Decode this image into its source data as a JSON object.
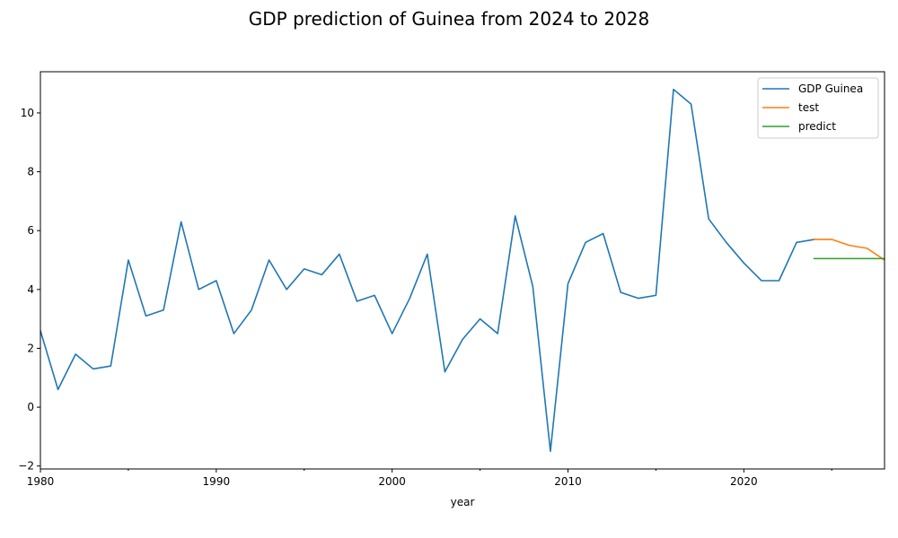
{
  "chart_data": {
    "type": "line",
    "title": "GDP prediction of Guinea from 2024 to 2028",
    "xlabel": "year",
    "ylabel": "",
    "xlim": [
      1980,
      2028
    ],
    "ylim": [
      -2.1,
      11.4
    ],
    "x_ticks": [
      1980,
      1990,
      2000,
      2010,
      2020
    ],
    "x_tick_labels": [
      "1980",
      "1990",
      "2000",
      "2010",
      "2020"
    ],
    "x_minor_ticks": [
      1985,
      1995,
      2005,
      2015,
      2025
    ],
    "y_ticks": [
      -2,
      0,
      2,
      4,
      6,
      8,
      10
    ],
    "y_tick_labels": [
      "−2",
      "0",
      "2",
      "4",
      "6",
      "8",
      "10"
    ],
    "grid": false,
    "legend_position": "top-right",
    "series": [
      {
        "name": "GDP Guinea",
        "color": "#1f77b4",
        "x": [
          1980,
          1981,
          1982,
          1983,
          1984,
          1985,
          1986,
          1987,
          1988,
          1989,
          1990,
          1991,
          1992,
          1993,
          1994,
          1995,
          1996,
          1997,
          1998,
          1999,
          2000,
          2001,
          2002,
          2003,
          2004,
          2005,
          2006,
          2007,
          2008,
          2009,
          2010,
          2011,
          2012,
          2013,
          2014,
          2015,
          2016,
          2017,
          2018,
          2019,
          2020,
          2021,
          2022,
          2023,
          2024
        ],
        "y": [
          2.6,
          0.6,
          1.8,
          1.3,
          1.4,
          5.0,
          3.1,
          3.3,
          6.3,
          4.0,
          4.3,
          2.5,
          3.3,
          5.0,
          4.0,
          4.7,
          4.5,
          5.2,
          3.6,
          3.8,
          2.5,
          3.7,
          5.2,
          1.2,
          2.3,
          3.0,
          2.5,
          6.5,
          4.1,
          -1.5,
          4.2,
          5.6,
          5.9,
          3.9,
          3.7,
          3.8,
          10.8,
          10.3,
          6.4,
          5.6,
          4.9,
          4.3,
          4.3,
          5.6,
          5.7
        ]
      },
      {
        "name": "test",
        "color": "#ff7f0e",
        "x": [
          2024,
          2025,
          2026,
          2027,
          2028
        ],
        "y": [
          5.7,
          5.7,
          5.5,
          5.4,
          5.0
        ]
      },
      {
        "name": "predict",
        "color": "#2ca02c",
        "x": [
          2024,
          2025,
          2026,
          2027,
          2028
        ],
        "y": [
          5.05,
          5.05,
          5.05,
          5.05,
          5.05
        ]
      }
    ]
  }
}
